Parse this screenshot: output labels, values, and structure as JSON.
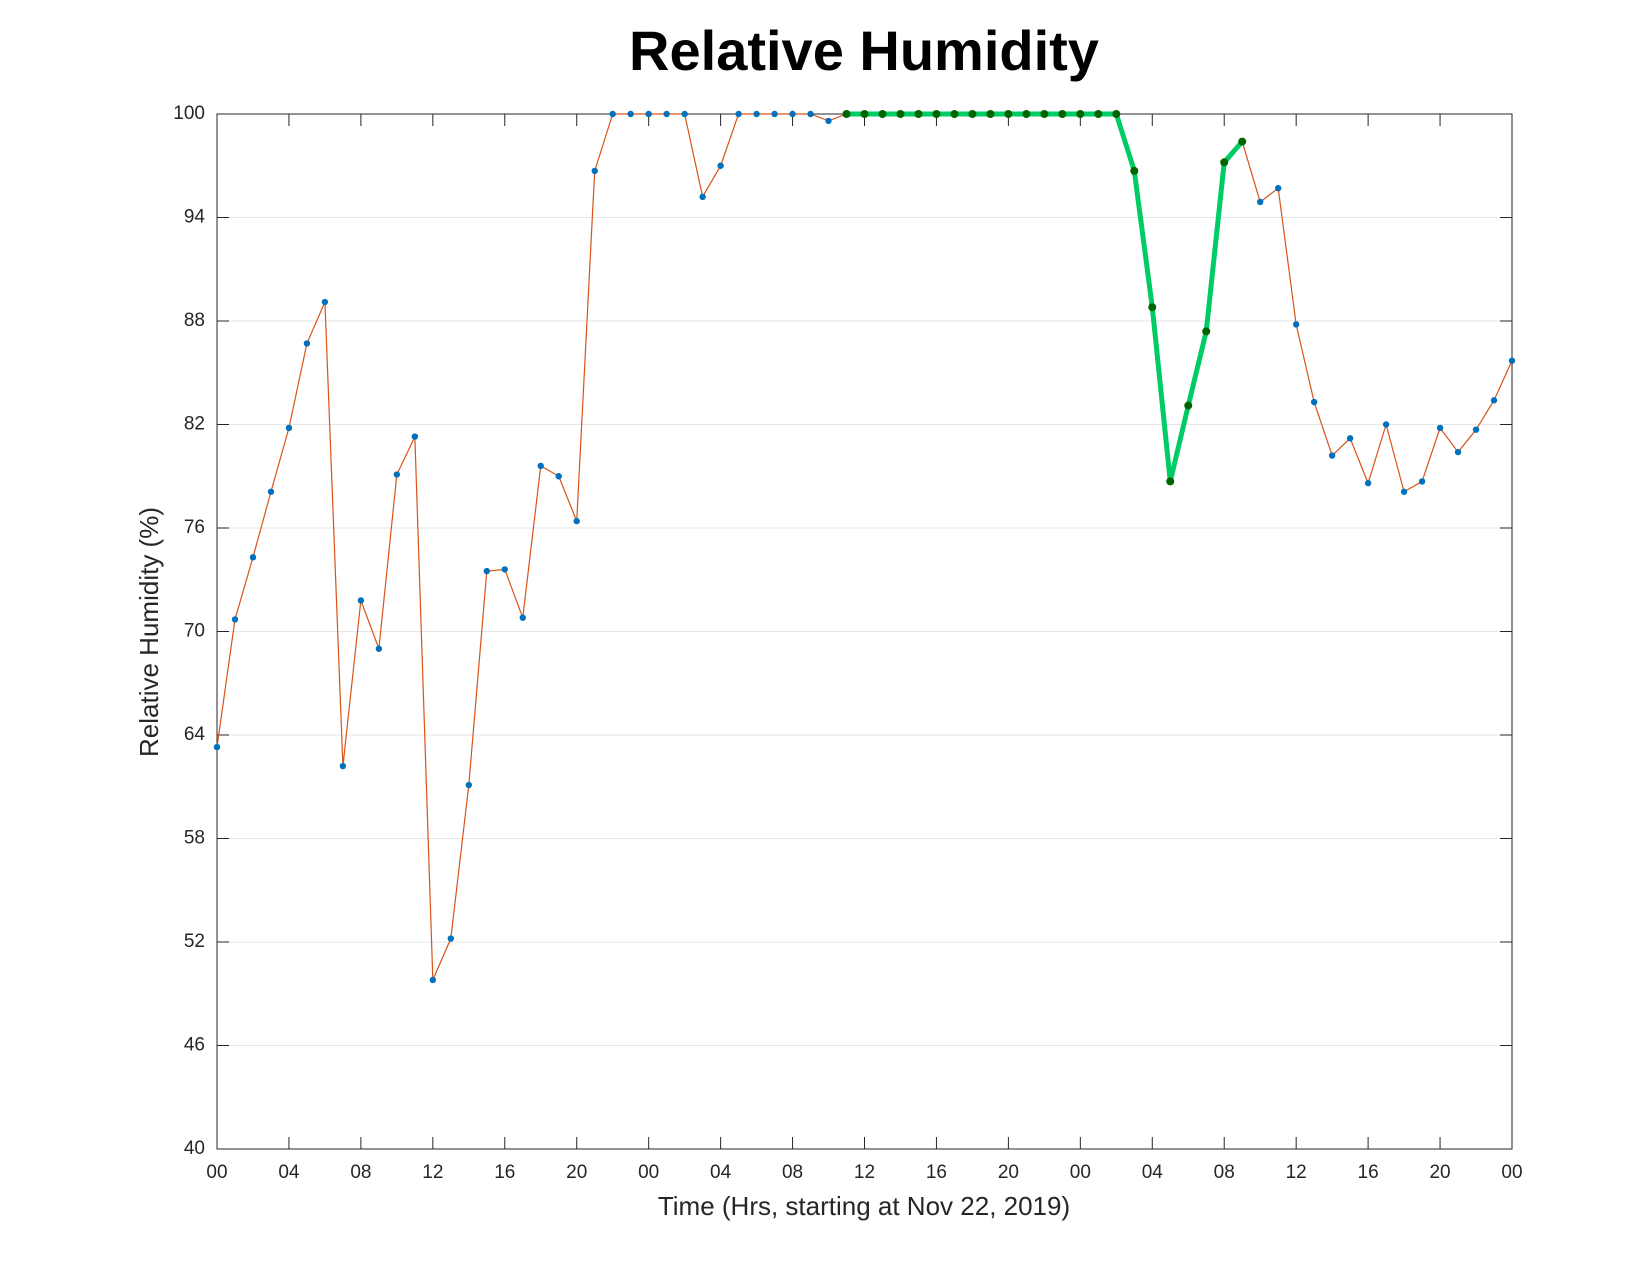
{
  "chart_data": {
    "type": "line",
    "title": "Relative Humidity",
    "xlabel": "Time (Hrs, starting at Nov 22, 2019)",
    "ylabel": "Relative Humidity (%)",
    "x": [
      0,
      1,
      2,
      3,
      4,
      5,
      6,
      7,
      8,
      9,
      10,
      11,
      12,
      13,
      14,
      15,
      16,
      17,
      18,
      19,
      20,
      21,
      22,
      23,
      24,
      25,
      26,
      27,
      28,
      29,
      30,
      31,
      32,
      33,
      34,
      35,
      36,
      37,
      38,
      39,
      40,
      41,
      42,
      43,
      44,
      45,
      46,
      47,
      48,
      49,
      50,
      51,
      52,
      53,
      54,
      55,
      56,
      57,
      58,
      59,
      60,
      61,
      62,
      63,
      64,
      65,
      66,
      67,
      68,
      69,
      70,
      71,
      72
    ],
    "series": [
      {
        "color": "#d95319",
        "marker_color": "#0072bd",
        "values": [
          63.3,
          70.7,
          74.3,
          78.1,
          81.8,
          86.7,
          89.1,
          62.2,
          71.8,
          69.0,
          79.1,
          81.3,
          49.8,
          52.2,
          61.1,
          73.5,
          73.6,
          70.8,
          79.6,
          79.0,
          76.4,
          96.7,
          100,
          100,
          100,
          100,
          100,
          95.2,
          97.0,
          100,
          100,
          100,
          100,
          100,
          99.6,
          100,
          100,
          100,
          100,
          100,
          100,
          100,
          100,
          100,
          100,
          100,
          100,
          100,
          100,
          100,
          100,
          96.7,
          88.8,
          78.7,
          83.1,
          87.4,
          97.2,
          98.4,
          94.9,
          95.7,
          87.8,
          83.3,
          80.2,
          81.2,
          78.6,
          82.0,
          78.1,
          78.7,
          81.8,
          80.4,
          81.7,
          83.4,
          85.7
        ]
      }
    ],
    "highlight": {
      "x": [
        35,
        57
      ],
      "color": "#00cc66",
      "marker_color": "#006400"
    },
    "xlim": [
      0,
      72
    ],
    "xticks": [
      {
        "value": 0,
        "label": "00"
      },
      {
        "value": 4,
        "label": "04"
      },
      {
        "value": 8,
        "label": "08"
      },
      {
        "value": 12,
        "label": "12"
      },
      {
        "value": 16,
        "label": "16"
      },
      {
        "value": 20,
        "label": "20"
      },
      {
        "value": 24,
        "label": "00"
      },
      {
        "value": 28,
        "label": "04"
      },
      {
        "value": 32,
        "label": "08"
      },
      {
        "value": 36,
        "label": "12"
      },
      {
        "value": 40,
        "label": "16"
      },
      {
        "value": 44,
        "label": "20"
      },
      {
        "value": 48,
        "label": "00"
      },
      {
        "value": 52,
        "label": "04"
      },
      {
        "value": 56,
        "label": "08"
      },
      {
        "value": 60,
        "label": "12"
      },
      {
        "value": 64,
        "label": "16"
      },
      {
        "value": 68,
        "label": "20"
      },
      {
        "value": 72,
        "label": "00"
      }
    ],
    "ylim": [
      40,
      100
    ],
    "yticks": [
      40,
      46,
      52,
      58,
      64,
      70,
      76,
      82,
      88,
      94,
      100
    ],
    "grid": true
  }
}
